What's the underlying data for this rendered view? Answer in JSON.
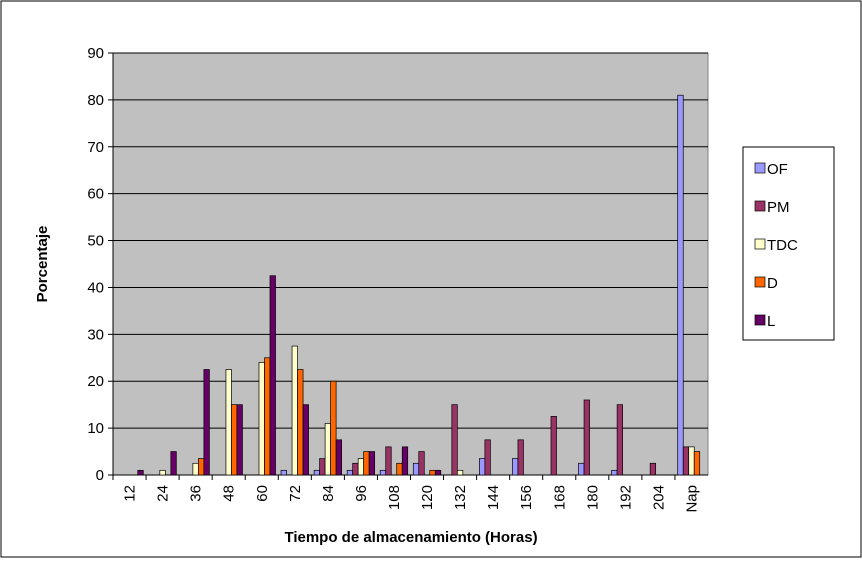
{
  "chart_data": {
    "type": "bar",
    "x_label": "Tiempo de almacenamiento (Horas)",
    "y_label": "Porcentaje",
    "categories": [
      "12",
      "24",
      "36",
      "48",
      "60",
      "72",
      "84",
      "96",
      "108",
      "120",
      "132",
      "144",
      "156",
      "168",
      "180",
      "192",
      "204",
      "Nap"
    ],
    "series": [
      {
        "name": "OF",
        "color": "#9999ff",
        "values": [
          0,
          0,
          0,
          0,
          0,
          1,
          1,
          1,
          1,
          2.5,
          0,
          3.5,
          3.5,
          0,
          2.5,
          1,
          0,
          81
        ]
      },
      {
        "name": "PM",
        "color": "#993366",
        "values": [
          0,
          0,
          0,
          0,
          0,
          0,
          3.5,
          2.5,
          6,
          5,
          15,
          7.5,
          7.5,
          12.5,
          16,
          15,
          2.5,
          6
        ]
      },
      {
        "name": "TDC",
        "color": "#ffffcc",
        "values": [
          0,
          1,
          2.5,
          22.5,
          24,
          27.5,
          11,
          3.5,
          0,
          0,
          1,
          0,
          0,
          0,
          0,
          0,
          0,
          6
        ]
      },
      {
        "name": "D",
        "color": "#ff6600",
        "values": [
          0,
          0,
          3.5,
          15,
          25,
          22.5,
          20,
          5,
          2.5,
          1,
          0,
          0,
          0,
          0,
          0,
          0,
          0,
          5
        ]
      },
      {
        "name": "L",
        "color": "#660066",
        "values": [
          1,
          5,
          22.5,
          15,
          42.5,
          15,
          7.5,
          5,
          6,
          1,
          0,
          0,
          0,
          0,
          0,
          0,
          0,
          0
        ]
      }
    ],
    "ylim": [
      0,
      90
    ],
    "yticks": [
      0,
      10,
      20,
      30,
      40,
      50,
      60,
      70,
      80,
      90
    ],
    "grid": true,
    "legend": "right",
    "plot_background": "#c0c0c0"
  }
}
